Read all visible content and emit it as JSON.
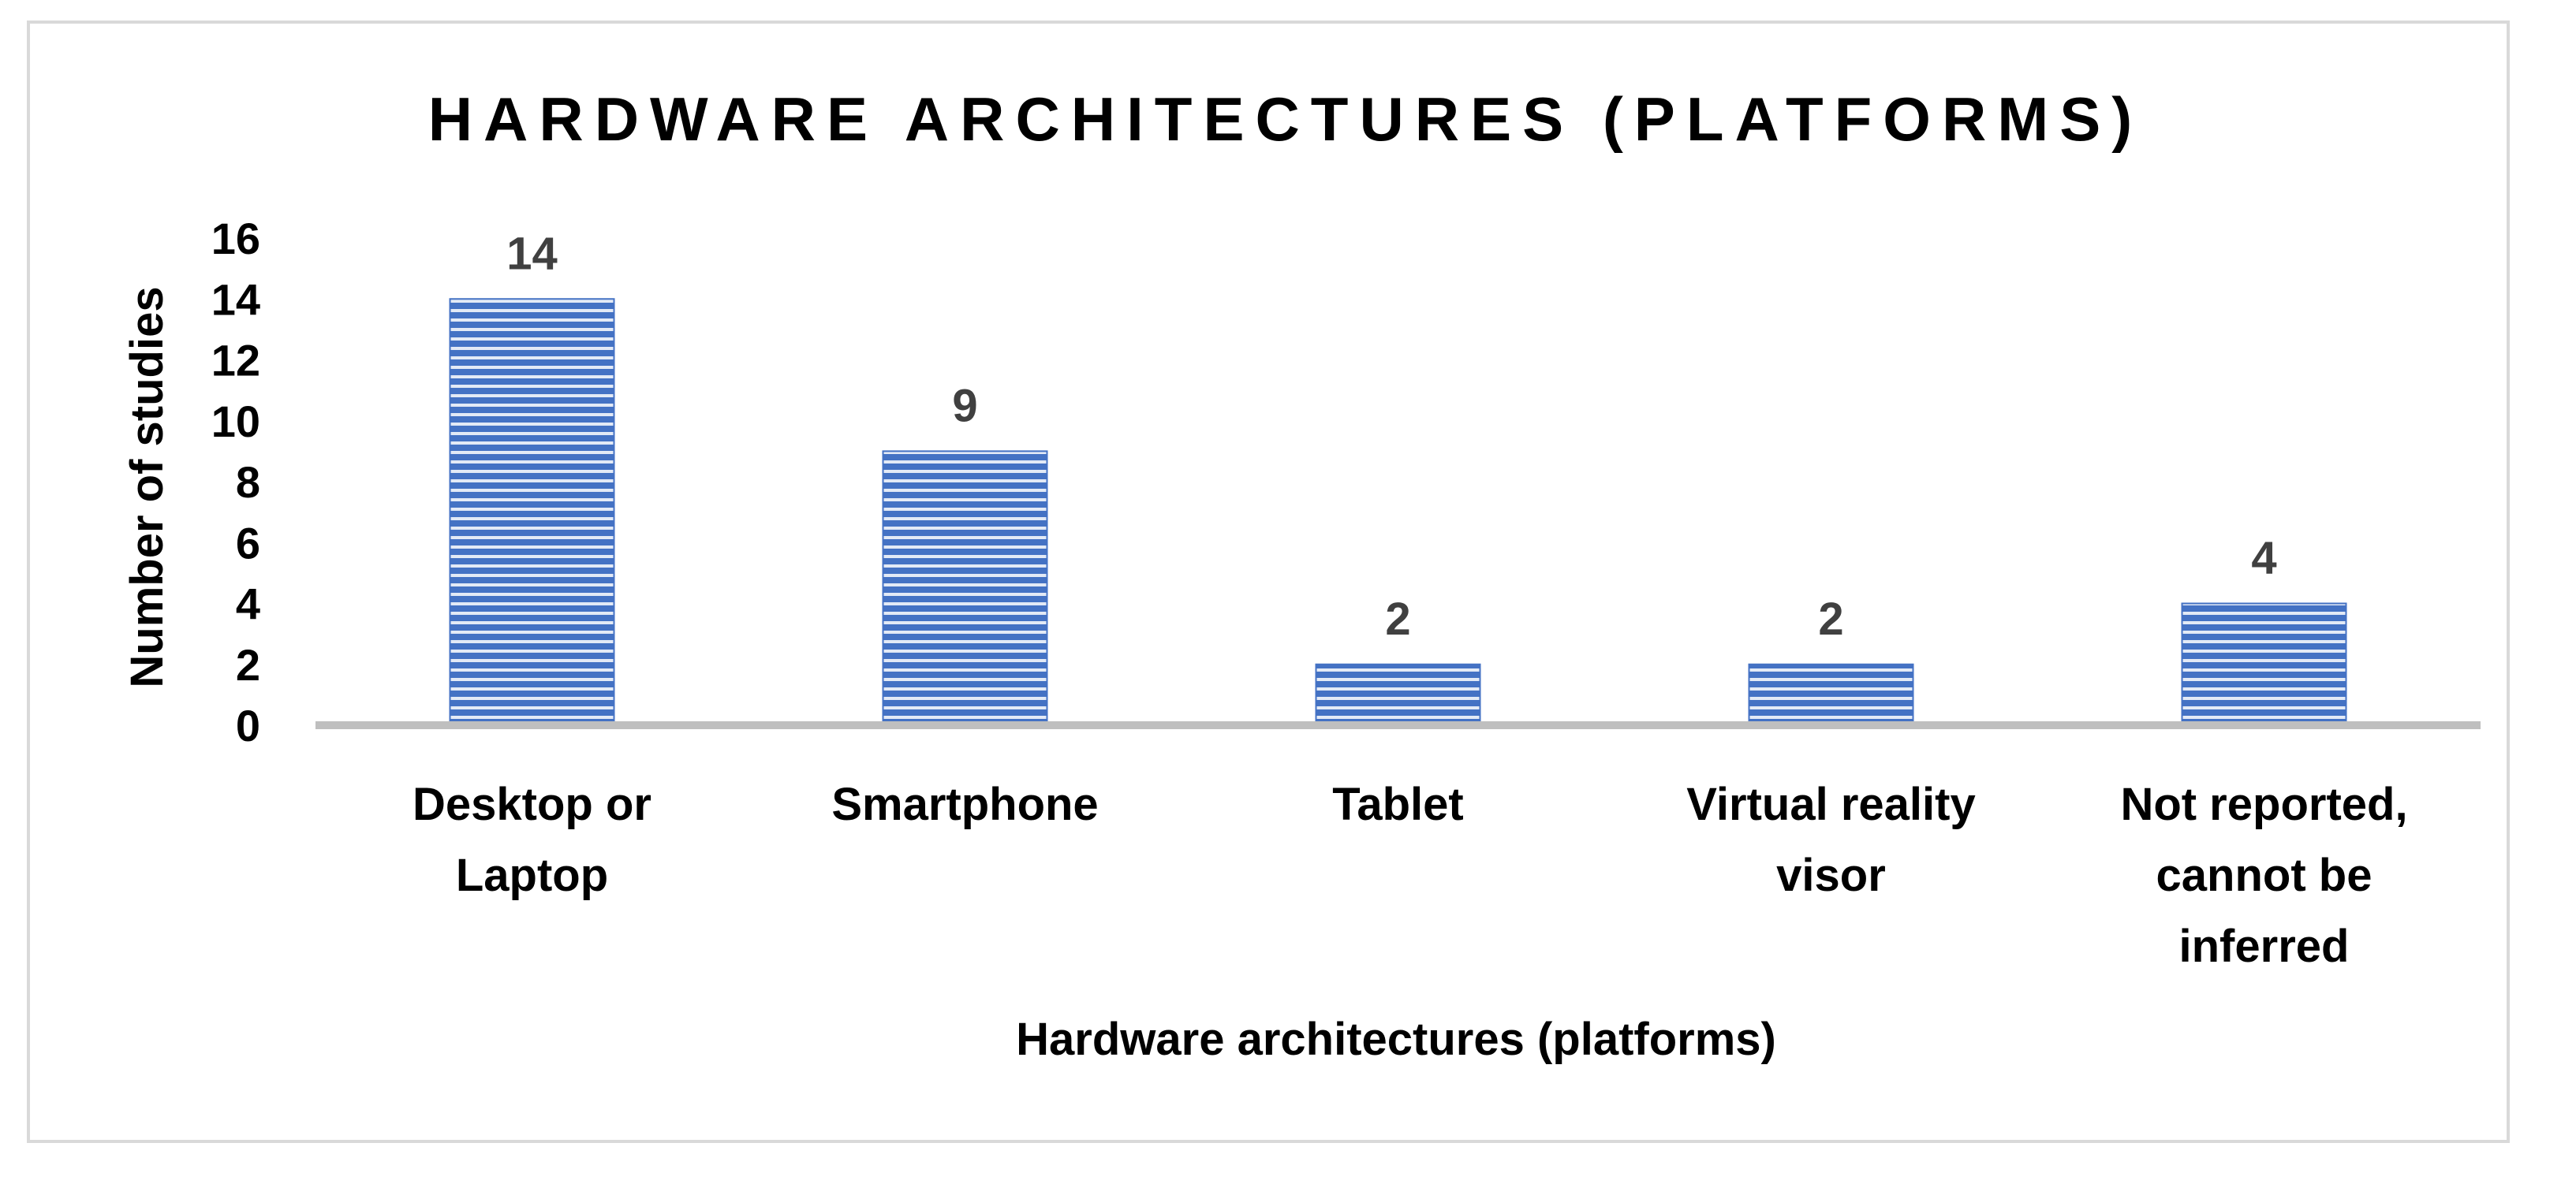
{
  "chart_data": {
    "type": "bar",
    "title": "HARDWARE ARCHITECTURES (PLATFORMS)",
    "xlabel": "Hardware architectures (platforms)",
    "ylabel": "Number of studies",
    "categories": [
      [
        "Desktop or",
        "Laptop"
      ],
      [
        "Smartphone"
      ],
      [
        "Tablet"
      ],
      [
        "Virtual reality",
        "visor"
      ],
      [
        "Not reported,",
        "cannot be",
        "inferred"
      ]
    ],
    "values": [
      14,
      9,
      2,
      2,
      4
    ],
    "data_labels": [
      "14",
      "9",
      "2",
      "2",
      "4"
    ],
    "yticks": [
      "0",
      "2",
      "4",
      "6",
      "8",
      "10",
      "12",
      "14",
      "16"
    ],
    "ylim": [
      0,
      16
    ],
    "grid": false,
    "legend": "none",
    "colors": {
      "bar": "#4472c4",
      "bar_stripe": "#ffffff",
      "axis": "#bfbfbf",
      "frame": "#d9d9d9",
      "data_label": "#404040"
    }
  }
}
